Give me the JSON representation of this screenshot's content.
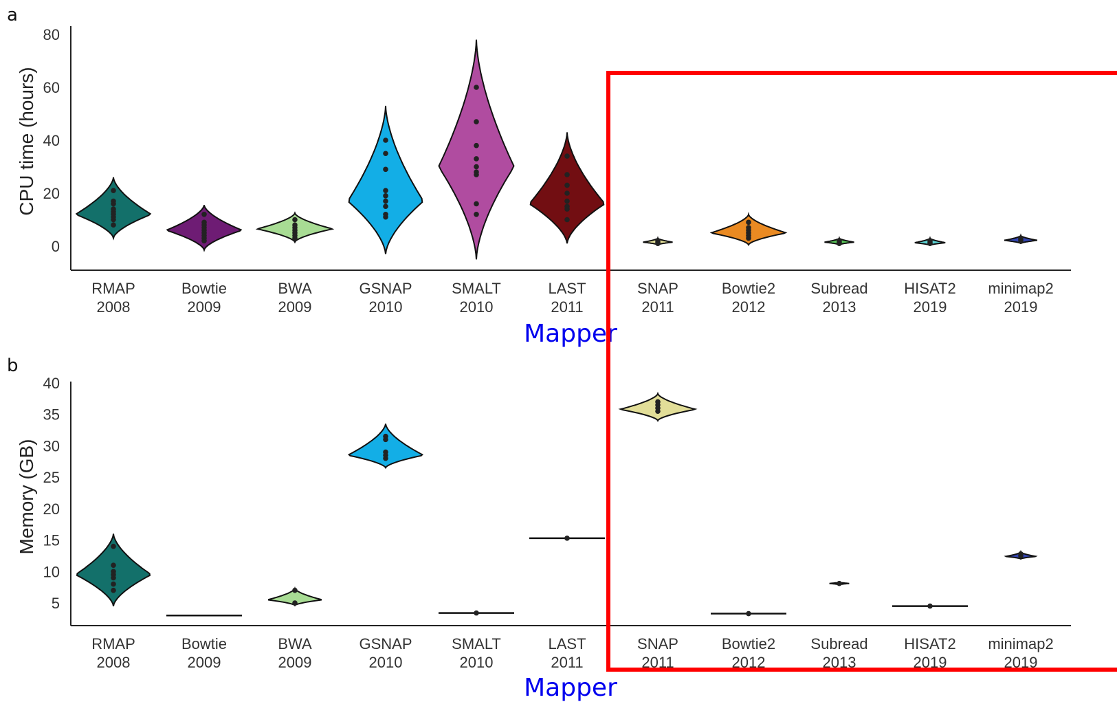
{
  "chart_data": [
    {
      "panel": "a",
      "type": "violin",
      "ylabel": "CPU time (hours)",
      "xlabel": "Mapper",
      "yticks": [
        0,
        20,
        40,
        60,
        80
      ],
      "ylim": [
        -9,
        80
      ],
      "categories": [
        {
          "name": "RMAP",
          "year": "2008",
          "color": "#13706a",
          "median": 12,
          "min": 3,
          "max": 26,
          "points": [
            8,
            10,
            11,
            12,
            13,
            14,
            16,
            17,
            21
          ]
        },
        {
          "name": "Bowtie",
          "year": "2009",
          "color": "#6e1c74",
          "median": 6,
          "min": -1.5,
          "max": 15.5,
          "points": [
            2,
            3,
            4,
            5,
            6,
            7,
            8,
            9,
            12
          ]
        },
        {
          "name": "BWA",
          "year": "2009",
          "color": "#a8dc94",
          "median": 6.5,
          "min": 1.5,
          "max": 12.5,
          "points": [
            3,
            4,
            5,
            6,
            7,
            8,
            10
          ]
        },
        {
          "name": "GSNAP",
          "year": "2010",
          "color": "#13aee6",
          "median": 17,
          "min": -3,
          "max": 53,
          "points": [
            11,
            12,
            15,
            17,
            19,
            21,
            29,
            35,
            40
          ]
        },
        {
          "name": "SMALT",
          "year": "2010",
          "color": "#b04ca0",
          "median": 30,
          "min": -5,
          "max": 78,
          "points": [
            12,
            16,
            27,
            28,
            30,
            33,
            38,
            47,
            60
          ]
        },
        {
          "name": "LAST",
          "year": "2011",
          "color": "#720e12",
          "median": 16,
          "min": 1,
          "max": 43,
          "points": [
            10,
            14,
            15,
            17,
            20,
            23,
            27,
            34
          ]
        },
        {
          "name": "SNAP",
          "year": "2011",
          "color": "#e2de98",
          "median": 1.5,
          "min": 0.5,
          "max": 3,
          "points": [
            1,
            1.5,
            2
          ]
        },
        {
          "name": "Bowtie2",
          "year": "2012",
          "color": "#ea8a22",
          "median": 5,
          "min": 0.5,
          "max": 12,
          "points": [
            3,
            4,
            5,
            6,
            7,
            9
          ]
        },
        {
          "name": "Subread",
          "year": "2013",
          "color": "#58c458",
          "median": 1.5,
          "min": 0.5,
          "max": 3,
          "points": [
            1,
            1.5,
            2
          ]
        },
        {
          "name": "HISAT2",
          "year": "2019",
          "color": "#5cd2d2",
          "median": 1.3,
          "min": 0.3,
          "max": 3,
          "points": [
            1,
            1.5,
            2
          ]
        },
        {
          "name": "minimap2",
          "year": "2019",
          "color": "#3446b2",
          "median": 2.2,
          "min": 1,
          "max": 4,
          "points": [
            2,
            2.5,
            3
          ]
        }
      ]
    },
    {
      "panel": "b",
      "type": "violin",
      "ylabel": "Memory (GB)",
      "xlabel": "Mapper",
      "yticks": [
        5,
        10,
        15,
        20,
        25,
        30,
        35,
        40
      ],
      "ylim": [
        1,
        40
      ],
      "categories": [
        {
          "name": "RMAP",
          "year": "2008",
          "color": "#13706a",
          "median": 9.5,
          "min": 4.5,
          "max": 16,
          "points": [
            7,
            8,
            9,
            9.5,
            10,
            11,
            14
          ]
        },
        {
          "name": "Bowtie",
          "year": "2009",
          "color": "#6e1c74",
          "median": 3,
          "min": 3,
          "max": 3,
          "points": []
        },
        {
          "name": "BWA",
          "year": "2009",
          "color": "#a8dc94",
          "median": 5.5,
          "min": 4.6,
          "max": 7.3,
          "points": [
            5,
            7
          ]
        },
        {
          "name": "GSNAP",
          "year": "2010",
          "color": "#13aee6",
          "median": 28.5,
          "min": 26.5,
          "max": 33.5,
          "points": [
            28,
            28.5,
            29,
            31,
            31.5
          ]
        },
        {
          "name": "SMALT",
          "year": "2010",
          "color": "#b04ca0",
          "median": 3.4,
          "min": 3.4,
          "max": 3.4,
          "points": [
            3.4
          ]
        },
        {
          "name": "LAST",
          "year": "2011",
          "color": "#720e12",
          "median": 15.3,
          "min": 15.3,
          "max": 15.3,
          "points": [
            15.3
          ]
        },
        {
          "name": "SNAP",
          "year": "2011",
          "color": "#e2de98",
          "median": 35.8,
          "min": 34,
          "max": 38.3,
          "points": [
            35.5,
            36,
            36.5,
            37
          ]
        },
        {
          "name": "Bowtie2",
          "year": "2012",
          "color": "#ea8a22",
          "median": 3.3,
          "min": 3.3,
          "max": 3.3,
          "points": [
            3.3
          ]
        },
        {
          "name": "Subread",
          "year": "2013",
          "color": "#58c458",
          "median": 8.1,
          "min": 7.9,
          "max": 8.3,
          "points": [
            8.1
          ]
        },
        {
          "name": "HISAT2",
          "year": "2019",
          "color": "#5cd2d2",
          "median": 4.5,
          "min": 4.5,
          "max": 4.5,
          "points": [
            4.5
          ]
        },
        {
          "name": "minimap2",
          "year": "2019",
          "color": "#3446b2",
          "median": 12.4,
          "min": 12,
          "max": 13.1,
          "points": [
            12.5,
            12.8
          ]
        }
      ]
    }
  ],
  "panels": {
    "a": "a",
    "b": "b"
  },
  "highlight": {
    "color": "#ff0000",
    "first_category": "SNAP",
    "last_category": "minimap2"
  }
}
